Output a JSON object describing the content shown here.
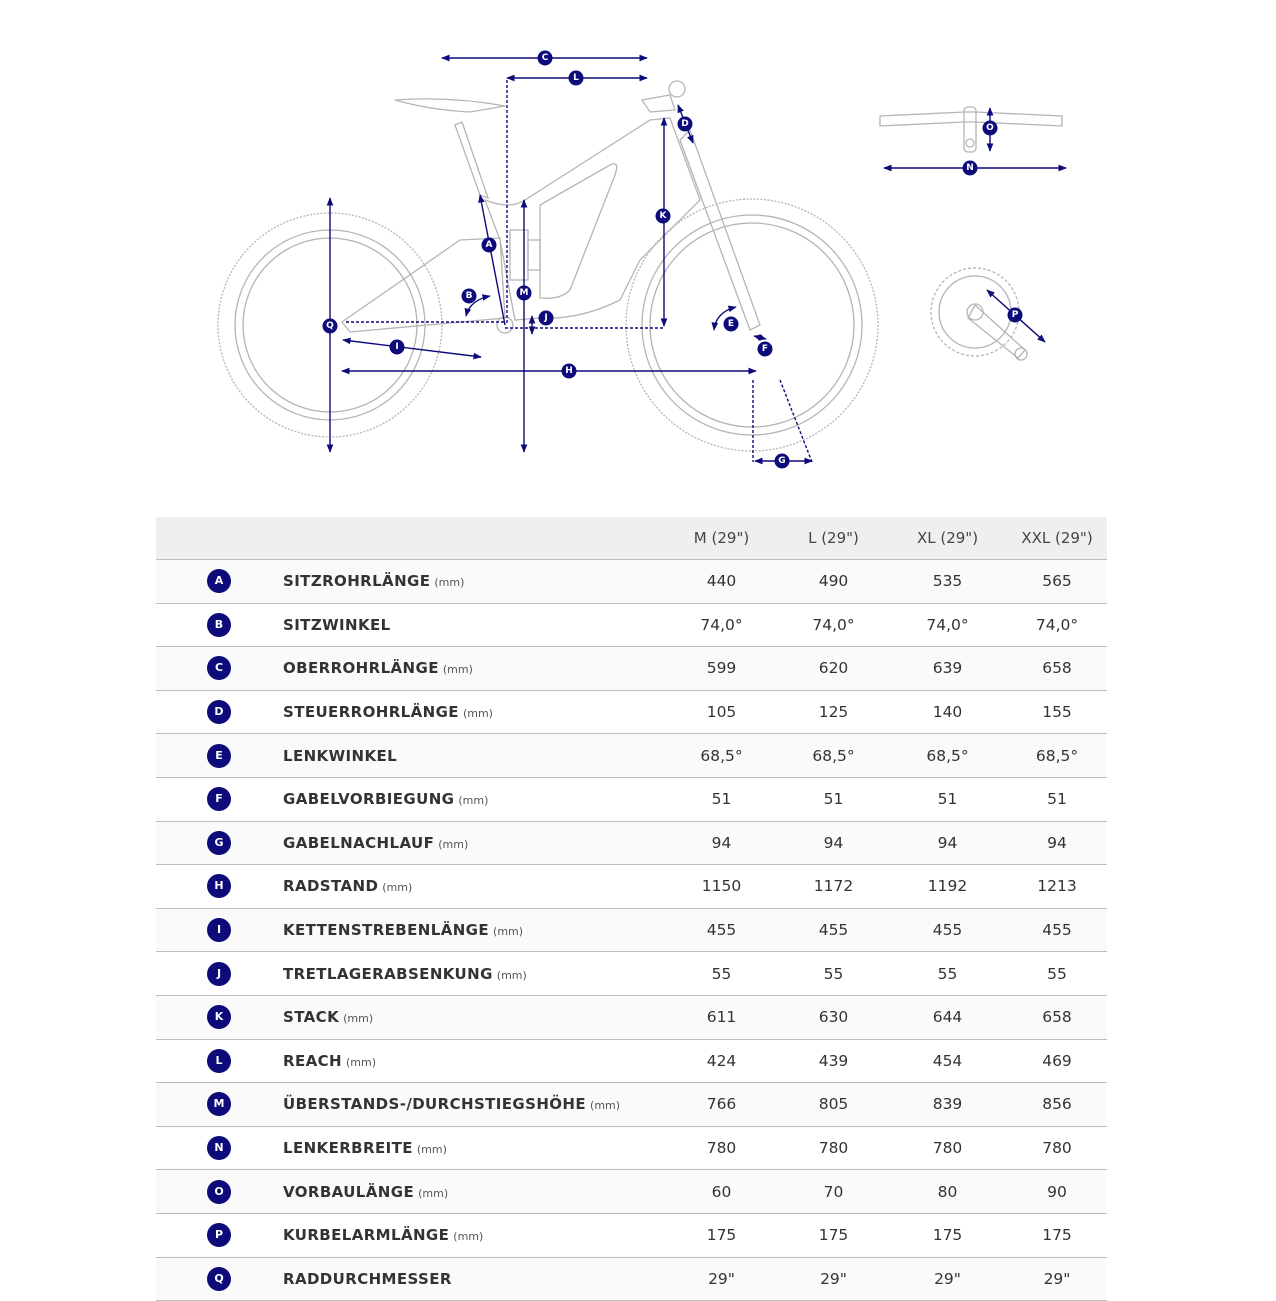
{
  "diagram": {
    "labels": {
      "A": "A",
      "B": "B",
      "C": "C",
      "D": "D",
      "E": "E",
      "F": "F",
      "G": "G",
      "H": "H",
      "I": "I",
      "J": "J",
      "K": "K",
      "L": "L",
      "M": "M",
      "N": "N",
      "O": "O",
      "P": "P",
      "Q": "Q"
    },
    "accent_color": "#0d0a7a",
    "line_color": "#b5b5b5"
  },
  "table": {
    "columns": [
      "M (29\")",
      "L (29\")",
      "XL (29\")",
      "XXL (29\")"
    ],
    "rows": [
      {
        "key": "A",
        "name": "SITZROHRLÄNGE",
        "unit": "(mm)",
        "values": [
          "440",
          "490",
          "535",
          "565"
        ]
      },
      {
        "key": "B",
        "name": "SITZWINKEL",
        "unit": "",
        "values": [
          "74,0°",
          "74,0°",
          "74,0°",
          "74,0°"
        ]
      },
      {
        "key": "C",
        "name": "OBERROHRLÄNGE",
        "unit": "(mm)",
        "values": [
          "599",
          "620",
          "639",
          "658"
        ]
      },
      {
        "key": "D",
        "name": "STEUERROHRLÄNGE",
        "unit": "(mm)",
        "values": [
          "105",
          "125",
          "140",
          "155"
        ]
      },
      {
        "key": "E",
        "name": "LENKWINKEL",
        "unit": "",
        "values": [
          "68,5°",
          "68,5°",
          "68,5°",
          "68,5°"
        ]
      },
      {
        "key": "F",
        "name": "GABELVORBIEGUNG",
        "unit": "(mm)",
        "values": [
          "51",
          "51",
          "51",
          "51"
        ]
      },
      {
        "key": "G",
        "name": "GABELNACHLAUF",
        "unit": "(mm)",
        "values": [
          "94",
          "94",
          "94",
          "94"
        ]
      },
      {
        "key": "H",
        "name": "RADSTAND",
        "unit": "(mm)",
        "values": [
          "1150",
          "1172",
          "1192",
          "1213"
        ]
      },
      {
        "key": "I",
        "name": "KETTENSTREBENLÄNGE",
        "unit": "(mm)",
        "values": [
          "455",
          "455",
          "455",
          "455"
        ]
      },
      {
        "key": "J",
        "name": "TRETLAGERABSENKUNG",
        "unit": "(mm)",
        "values": [
          "55",
          "55",
          "55",
          "55"
        ]
      },
      {
        "key": "K",
        "name": "STACK",
        "unit": "(mm)",
        "values": [
          "611",
          "630",
          "644",
          "658"
        ]
      },
      {
        "key": "L",
        "name": "REACH",
        "unit": "(mm)",
        "values": [
          "424",
          "439",
          "454",
          "469"
        ]
      },
      {
        "key": "M",
        "name": "ÜBERSTANDS-/DURCHSTIEGSHÖHE",
        "unit": "(mm)",
        "values": [
          "766",
          "805",
          "839",
          "856"
        ]
      },
      {
        "key": "N",
        "name": "LENKERBREITE",
        "unit": "(mm)",
        "values": [
          "780",
          "780",
          "780",
          "780"
        ]
      },
      {
        "key": "O",
        "name": "VORBAULÄNGE",
        "unit": "(mm)",
        "values": [
          "60",
          "70",
          "80",
          "90"
        ]
      },
      {
        "key": "P",
        "name": "KURBELARMLÄNGE",
        "unit": "(mm)",
        "values": [
          "175",
          "175",
          "175",
          "175"
        ]
      },
      {
        "key": "Q",
        "name": "RADDURCHMESSER",
        "unit": "",
        "values": [
          "29\"",
          "29\"",
          "29\"",
          "29\""
        ]
      }
    ]
  }
}
